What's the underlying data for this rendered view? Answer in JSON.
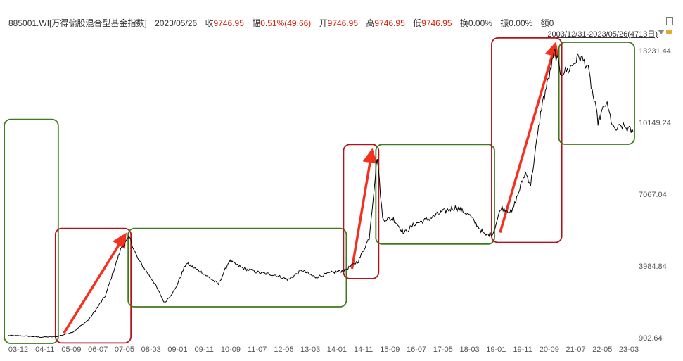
{
  "header": {
    "code_name": "885001.WI[万得偏股混合型基金指数]",
    "date": "2023/05/26",
    "close_label": "收",
    "close_value": "9746.95",
    "change_label": "幅",
    "change_value": "0.51%(49.66)",
    "open_label": "开",
    "open_value": "9746.95",
    "high_label": "高",
    "high_value": "9746.95",
    "low_label": "低",
    "low_value": "9746.95",
    "turnover_label": "换",
    "turnover_value": "0.00%",
    "amplitude_label": "振",
    "amplitude_value": "0.00%",
    "amount_label": "额",
    "amount_value": "0",
    "range_text": "2003/12/31-2023/05/26(4713日)"
  },
  "colors": {
    "line": "#000000",
    "arrow": "#f5301f",
    "box_rise": "#b3121a",
    "box_flat": "#3f7a1c",
    "axis_text": "#555555",
    "value_red": "#d81e06"
  },
  "icons": [
    "lock-icon",
    "dropdown-arrow-icon",
    "window-icon"
  ],
  "chart_data": {
    "type": "line",
    "title": "",
    "xlabel": "",
    "ylabel": "",
    "y_ticks": [
      "13231.44",
      "10149.24",
      "7067.04",
      "3984.84",
      "902.64"
    ],
    "y_tick_values": [
      13231.44,
      10149.24,
      7067.04,
      3984.84,
      902.64
    ],
    "ylim": [
      902.64,
      13231.44
    ],
    "x_ticks": [
      "03-12",
      "04-11",
      "05-09",
      "06-07",
      "07-05",
      "08-03",
      "09-01",
      "09-11",
      "10-09",
      "11-07",
      "12-05",
      "13-03",
      "14-01",
      "14-11",
      "15-09",
      "16-07",
      "17-05",
      "18-03",
      "19-01",
      "19-11",
      "20-09",
      "21-07",
      "22-05",
      "23-03"
    ],
    "series": [
      {
        "x": [
          "2004-01",
          "2004-07",
          "2005-01",
          "2005-07",
          "2006-01",
          "2006-07",
          "2007-01",
          "2007-07",
          "2007-10",
          "2008-01",
          "2008-07",
          "2008-11",
          "2009-03",
          "2009-07",
          "2010-01",
          "2010-07",
          "2010-11",
          "2011-04",
          "2011-10",
          "2012-04",
          "2012-09",
          "2013-02",
          "2013-07",
          "2014-01",
          "2014-06",
          "2014-11",
          "2015-03",
          "2015-06",
          "2015-08",
          "2015-12",
          "2016-04",
          "2016-08",
          "2017-01",
          "2017-06",
          "2017-11",
          "2018-04",
          "2018-10",
          "2019-01",
          "2019-04",
          "2019-08",
          "2020-01",
          "2020-03",
          "2020-07",
          "2020-12",
          "2021-02",
          "2021-05",
          "2021-09",
          "2021-12",
          "2022-04",
          "2022-07",
          "2022-10",
          "2023-01",
          "2023-05"
        ],
        "y": [
          1000,
          980,
          930,
          950,
          1150,
          1700,
          2700,
          4800,
          5200,
          4300,
          3300,
          2400,
          3000,
          4100,
          3700,
          3200,
          4200,
          3900,
          3700,
          3600,
          3400,
          3800,
          3500,
          3700,
          3800,
          4200,
          5200,
          8700,
          6000,
          6000,
          5400,
          5800,
          6000,
          6300,
          6500,
          6200,
          5300,
          5400,
          6500,
          6300,
          8000,
          7500,
          10800,
          13200,
          12300,
          12400,
          13000,
          12600,
          10200,
          11000,
          9800,
          10000,
          9746.95
        ]
      }
    ],
    "annotations": [
      {
        "type": "green-box",
        "from": "2003-12",
        "to": "2005-07",
        "meaning": "flat"
      },
      {
        "type": "red-box-arrow",
        "from": "2005-07",
        "to": "2007-10",
        "meaning": "rise"
      },
      {
        "type": "green-box",
        "from": "2007-10",
        "to": "2014-06",
        "meaning": "flat"
      },
      {
        "type": "red-box-arrow",
        "from": "2014-06",
        "to": "2015-06",
        "meaning": "rise"
      },
      {
        "type": "green-box",
        "from": "2015-06",
        "to": "2019-01",
        "meaning": "flat"
      },
      {
        "type": "red-box-arrow",
        "from": "2019-01",
        "to": "2021-02",
        "meaning": "rise"
      },
      {
        "type": "green-box",
        "from": "2021-02",
        "to": "2023-05",
        "meaning": "flat"
      }
    ],
    "grid": false
  }
}
